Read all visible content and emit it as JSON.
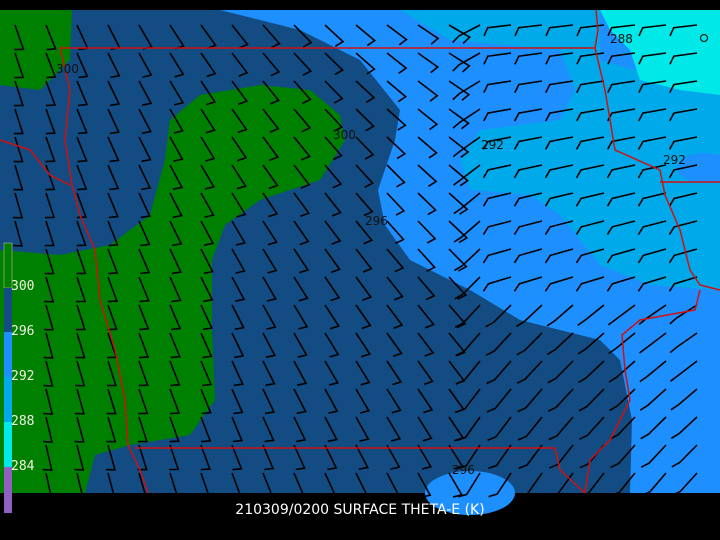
{
  "title": "210309/0200 SURFACE THETA-E (K)",
  "colorbar": {
    "labels": [
      "300",
      "296",
      "292",
      "288",
      "284"
    ],
    "colors": [
      "#008000",
      "#124c82",
      "#1e8fff",
      "#00aaea",
      "#00e8e8",
      "#9060c0"
    ]
  },
  "contour_labels": [
    "300",
    "300",
    "292",
    "288",
    "292",
    "296",
    "296"
  ],
  "colors": {
    "border": "#d01010",
    "barb": "#000000",
    "background": "#000000"
  }
}
